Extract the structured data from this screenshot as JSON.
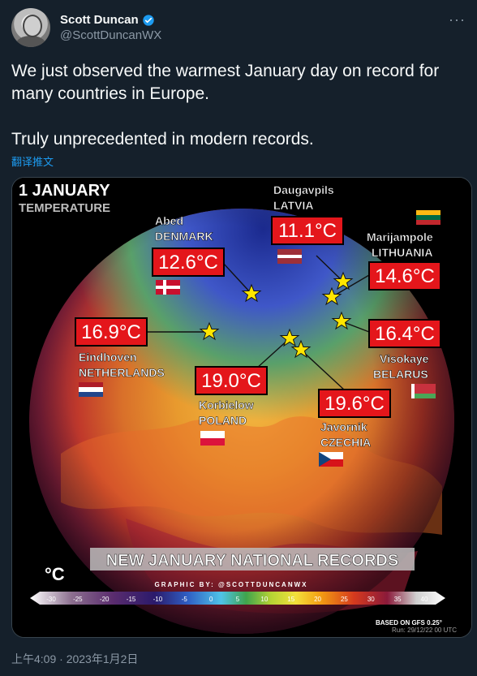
{
  "user": {
    "display_name": "Scott Duncan",
    "handle": "@ScottDuncanWX"
  },
  "tweet": {
    "line1": "We just observed the warmest January day on record for many countries in Europe.",
    "line2": "Truly unprecedented in modern records.",
    "translate_label": "翻译推文",
    "timestamp": "上午4:09 · 2023年1月2日"
  },
  "map": {
    "title": "1 JANUARY",
    "subtitle": "TEMPERATURE",
    "banner": "NEW JANUARY NATIONAL RECORDS",
    "unit_symbol": "°C",
    "credit": "GRAPHIC BY: @SCOTTDUNCANWX",
    "source": "BASED ON GFS 0.25°",
    "run": "Run: 29/12/22 00 UTC",
    "scale_ticks": [
      "-30",
      "-25",
      "-20",
      "-15",
      "-10",
      "-5",
      "0",
      "5",
      "10",
      "15",
      "20",
      "25",
      "30",
      "35",
      "40"
    ],
    "records": [
      {
        "value": "12.6°C",
        "city": "Abed",
        "country": "DENMARK"
      },
      {
        "value": "11.1°C",
        "city": "Daugavpils",
        "country": "LATVIA"
      },
      {
        "value": "14.6°C",
        "city": "Marijampole",
        "country": "LITHUANIA"
      },
      {
        "value": "16.9°C",
        "city": "Eindhoven",
        "country": "NETHERLANDS"
      },
      {
        "value": "16.4°C",
        "city": "Visokaye",
        "country": "BELARUS"
      },
      {
        "value": "19.0°C",
        "city": "Korbielow",
        "country": "POLAND"
      },
      {
        "value": "19.6°C",
        "city": "Javornik",
        "country": "CZECHIA"
      }
    ]
  }
}
